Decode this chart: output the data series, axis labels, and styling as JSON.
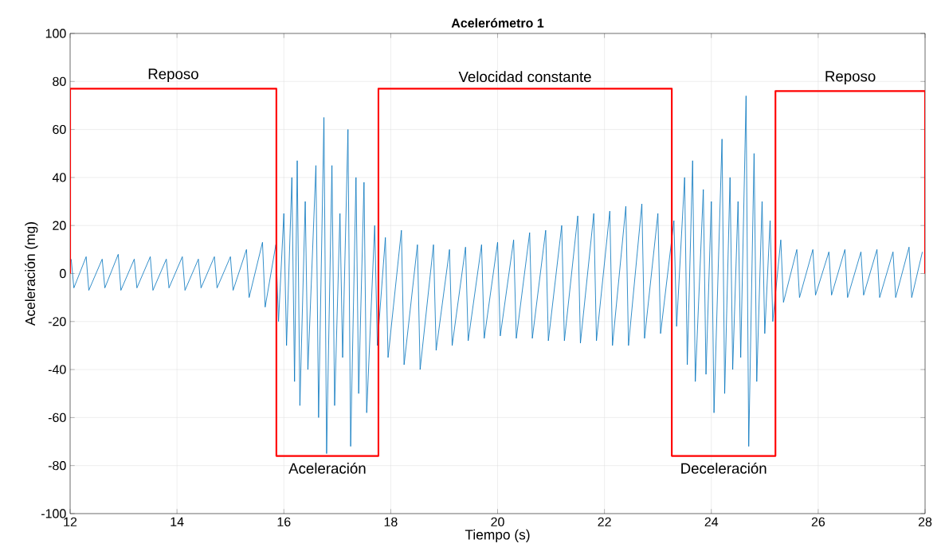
{
  "chart_data": {
    "type": "line",
    "title": "Acelerómetro 1",
    "xlabel": "Tiempo (s)",
    "ylabel": "Aceleración (mg)",
    "xlim": [
      12,
      28
    ],
    "ylim": [
      -100,
      100
    ],
    "xticks": [
      12,
      14,
      16,
      18,
      20,
      22,
      24,
      26,
      28
    ],
    "yticks": [
      -100,
      -80,
      -60,
      -40,
      -20,
      0,
      20,
      40,
      60,
      80,
      100
    ],
    "grid": true,
    "series": [
      {
        "color": "#0072bd",
        "x": [
          12.02,
          12.07,
          12.3,
          12.35,
          12.6,
          12.65,
          12.9,
          12.95,
          13.2,
          13.25,
          13.5,
          13.55,
          13.8,
          13.85,
          14.1,
          14.15,
          14.4,
          14.45,
          14.7,
          14.75,
          15.0,
          15.05,
          15.3,
          15.35,
          15.6,
          15.65,
          15.85,
          15.9,
          16.0,
          16.05,
          16.15,
          16.2,
          16.25,
          16.3,
          16.4,
          16.45,
          16.6,
          16.65,
          16.75,
          16.8,
          16.9,
          16.95,
          17.05,
          17.1,
          17.2,
          17.25,
          17.35,
          17.4,
          17.5,
          17.55,
          17.7,
          17.75,
          17.9,
          17.95,
          18.2,
          18.25,
          18.5,
          18.55,
          18.8,
          18.85,
          19.1,
          19.15,
          19.4,
          19.45,
          19.7,
          19.75,
          20.0,
          20.05,
          20.3,
          20.35,
          20.6,
          20.65,
          20.9,
          20.95,
          21.2,
          21.25,
          21.5,
          21.55,
          21.8,
          21.85,
          22.1,
          22.15,
          22.4,
          22.45,
          22.7,
          22.75,
          23.0,
          23.05,
          23.3,
          23.35,
          23.5,
          23.55,
          23.65,
          23.7,
          23.85,
          23.9,
          24.0,
          24.05,
          24.2,
          24.25,
          24.35,
          24.4,
          24.5,
          24.55,
          24.65,
          24.7,
          24.8,
          24.85,
          24.95,
          25.0,
          25.1,
          25.15,
          25.3,
          25.35,
          25.6,
          25.65,
          25.9,
          25.95,
          26.2,
          26.25,
          26.5,
          26.55,
          26.8,
          26.85,
          27.1,
          27.15,
          27.4,
          27.45,
          27.7,
          27.75,
          27.95
        ],
        "values": [
          6,
          -6,
          7,
          -7,
          6,
          -6,
          8,
          -7,
          6,
          -6,
          7,
          -7,
          6,
          -6,
          7,
          -7,
          6,
          -6,
          7,
          -6,
          7,
          -7,
          10,
          -10,
          13,
          -14,
          12,
          -20,
          25,
          -30,
          40,
          -45,
          47,
          -55,
          30,
          -40,
          45,
          -60,
          65,
          -75,
          45,
          -55,
          25,
          -35,
          60,
          -72,
          40,
          -50,
          38,
          -58,
          20,
          -30,
          15,
          -35,
          18,
          -38,
          12,
          -40,
          12,
          -32,
          10,
          -30,
          11,
          -28,
          12,
          -27,
          13,
          -26,
          14,
          -27,
          17,
          -27,
          18,
          -28,
          20,
          -28,
          24,
          -29,
          25,
          -28,
          26,
          -30,
          28,
          -30,
          29,
          -27,
          25,
          -25,
          22,
          -22,
          40,
          -38,
          47,
          -45,
          35,
          -42,
          30,
          -58,
          56,
          -50,
          40,
          -40,
          30,
          -35,
          74,
          -72,
          50,
          -45,
          30,
          -25,
          22,
          -20,
          14,
          -12,
          10,
          -10,
          10,
          -9,
          9,
          -9,
          10,
          -10,
          9,
          -9,
          10,
          -10,
          9,
          -10,
          11,
          -10,
          9
        ]
      },
      {
        "color": "#ff0000",
        "x": [
          12,
          12,
          15.86,
          15.86,
          17.77,
          17.77,
          23.26,
          23.26,
          25.2,
          25.2,
          28,
          28
        ],
        "values": [
          0,
          77,
          77,
          -76,
          -76,
          77,
          77,
          -76,
          -76,
          76,
          76,
          0
        ]
      }
    ],
    "annotations": [
      "Reposo",
      "Aceleración",
      "Velocidad constante",
      "Deceleración",
      "Reposo"
    ]
  }
}
